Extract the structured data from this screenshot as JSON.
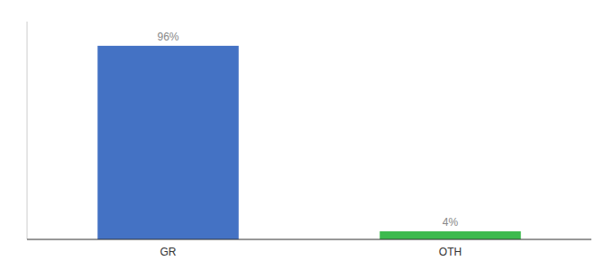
{
  "chart_data": {
    "type": "bar",
    "categories": [
      "GR",
      "OTH"
    ],
    "values": [
      96,
      4
    ],
    "value_labels": [
      "96%",
      "4%"
    ],
    "colors": [
      "#4472c4",
      "#3dba4e"
    ],
    "ylim": [
      0,
      108
    ],
    "data_labels": true,
    "tick_labels": "x"
  }
}
